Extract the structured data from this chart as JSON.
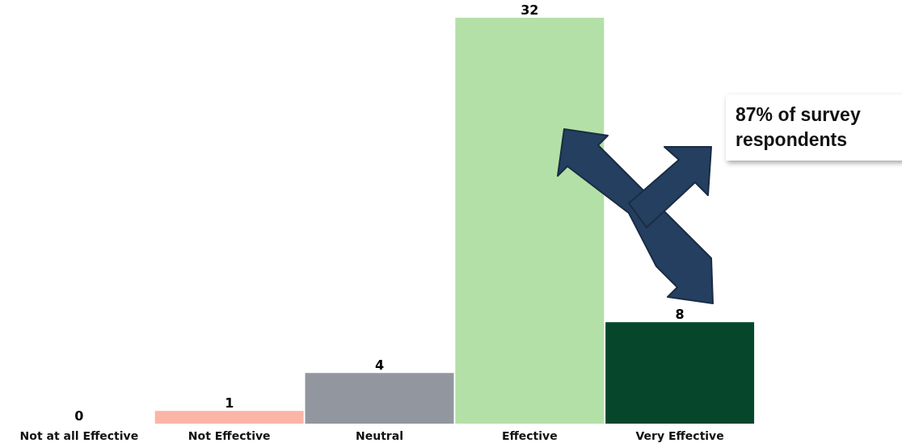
{
  "chart_data": {
    "type": "bar",
    "categories": [
      "Not at all Effective",
      "Not Effective",
      "Neutral",
      "Effective",
      "Very Effective"
    ],
    "values": [
      0,
      1,
      4,
      32,
      8
    ],
    "colors": [
      "#000000",
      "#fbb5a6",
      "#92969e",
      "#b3e0a6",
      "#06472b"
    ],
    "data_labels": true,
    "annotations": [
      "87% of survey respondents"
    ]
  }
}
